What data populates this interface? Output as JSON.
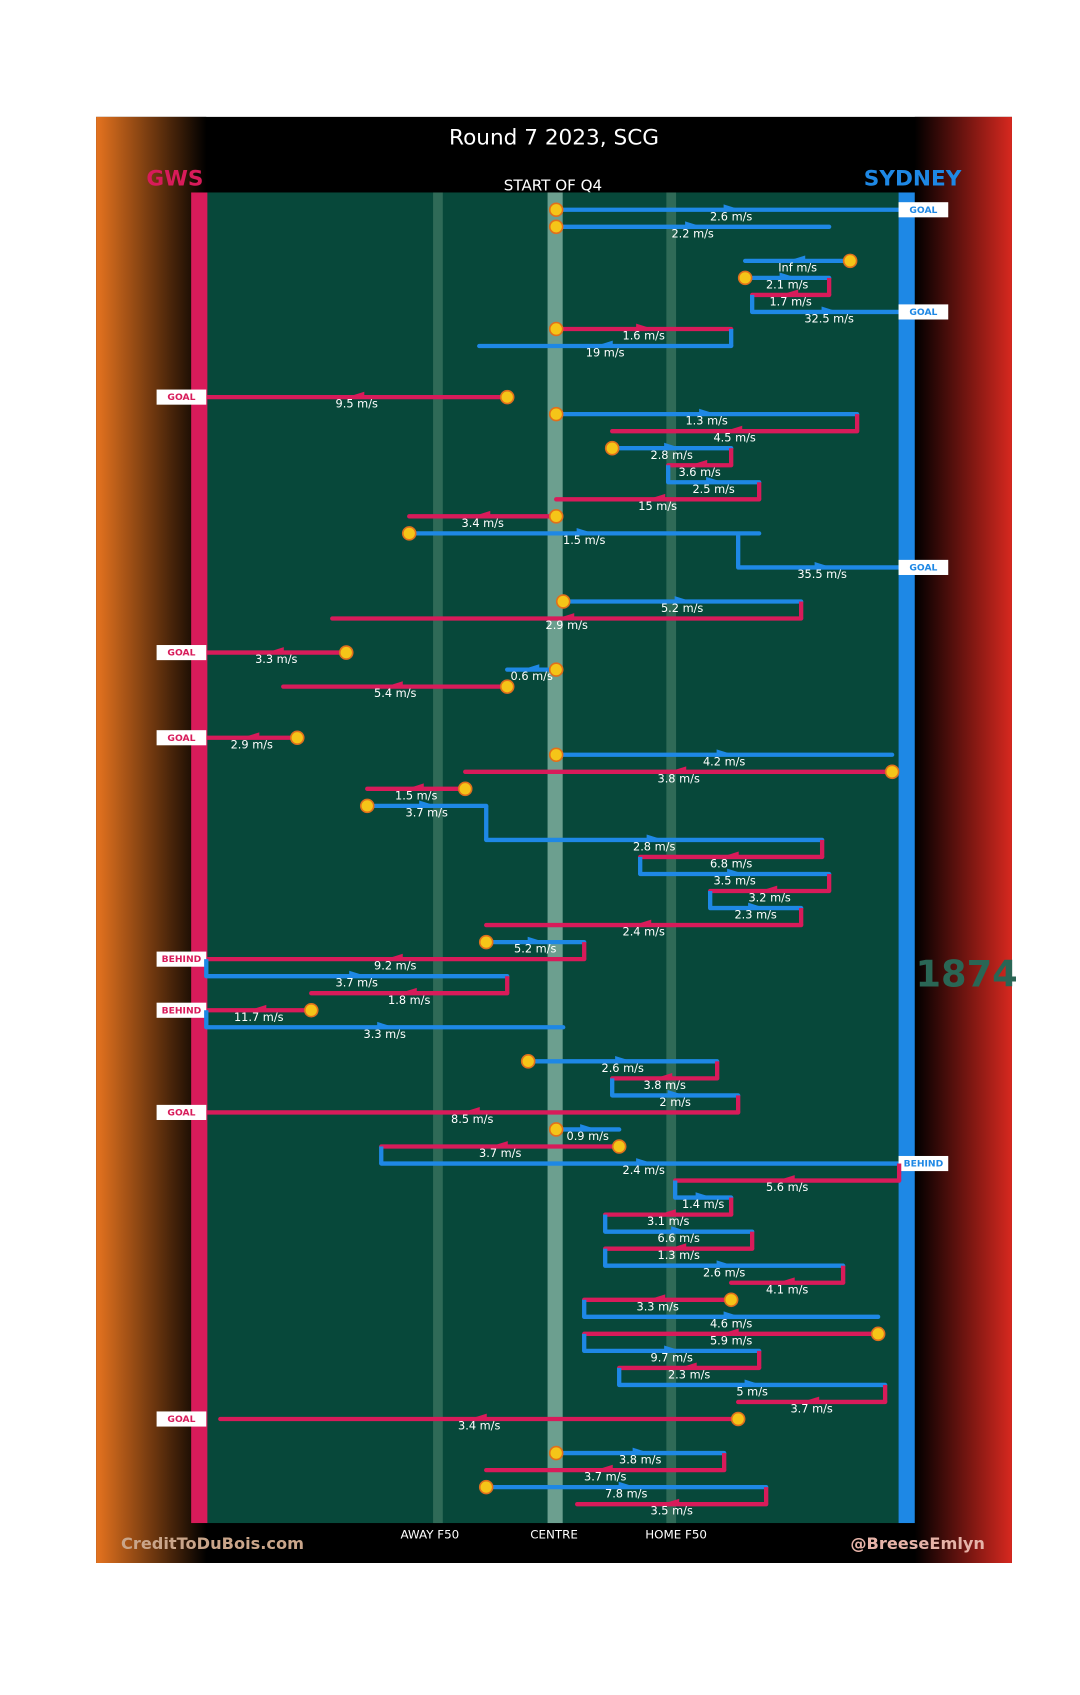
{
  "title": "Round 7 2023, SCG",
  "subtitle": "START OF Q4",
  "teams": {
    "GWS": {
      "name": "GWS",
      "color": "#d81b5a"
    },
    "SYDNEY": {
      "name": "SYDNEY",
      "color": "#1e88e5"
    }
  },
  "field_labels": {
    "away": "AWAY F50",
    "centre": "CENTRE",
    "home": "HOME F50"
  },
  "credit_left": "CreditToDuBois.com",
  "credit_right": "@BreeseEmlyn",
  "watermark": "1874",
  "rows": [
    {
      "team": "SYDNEY",
      "from": 50,
      "to": 100,
      "label": "2.6 m/s",
      "start": true,
      "result": "GOAL"
    },
    {
      "team": "SYDNEY",
      "from": 50,
      "to": 89,
      "label": "2.2 m/s",
      "start": true
    },
    {
      "team": "SYDNEY",
      "from": 92,
      "to": 77,
      "label": "Inf m/s",
      "start": true
    },
    {
      "team": "SYDNEY",
      "from": 77,
      "to": 89,
      "label": "2.1 m/s",
      "start": true
    },
    {
      "team": "GWS",
      "from": 89,
      "to": 78,
      "label": "1.7 m/s"
    },
    {
      "team": "SYDNEY",
      "from": 78,
      "to": 100,
      "label": "32.5 m/s",
      "result": "GOAL"
    },
    {
      "team": "GWS",
      "from": 50,
      "to": 75,
      "label": "1.6 m/s",
      "start": true
    },
    {
      "team": "SYDNEY",
      "from": 75,
      "to": 39,
      "label": "19 m/s"
    },
    {
      "team": "GWS",
      "from": 43,
      "to": 0,
      "label": "9.5 m/s",
      "start": true,
      "result": "GOAL"
    },
    {
      "team": "SYDNEY",
      "from": 50,
      "to": 93,
      "label": "1.3 m/s",
      "start": true
    },
    {
      "team": "GWS",
      "from": 93,
      "to": 58,
      "label": "4.5 m/s"
    },
    {
      "team": "SYDNEY",
      "from": 58,
      "to": 75,
      "label": "2.8 m/s",
      "start": true
    },
    {
      "team": "GWS",
      "from": 75,
      "to": 66,
      "label": "3.6 m/s"
    },
    {
      "team": "SYDNEY",
      "from": 66,
      "to": 79,
      "label": "2.5 m/s"
    },
    {
      "team": "GWS",
      "from": 79,
      "to": 50,
      "label": "15 m/s"
    },
    {
      "team": "GWS",
      "from": 50,
      "to": 29,
      "label": "3.4 m/s",
      "start": true
    },
    {
      "team": "SYDNEY",
      "from": 29,
      "to": 79,
      "label": "1.5 m/s",
      "start": true
    },
    {
      "team": "SYDNEY",
      "from": 76,
      "to": 100,
      "label": "35.5 m/s",
      "result": "GOAL"
    },
    {
      "team": "SYDNEY",
      "from": 51,
      "to": 85,
      "label": "5.2 m/s",
      "start": true
    },
    {
      "team": "GWS",
      "from": 85,
      "to": 18,
      "label": "2.9 m/s"
    },
    {
      "team": "GWS",
      "from": 20,
      "to": 0,
      "label": "3.3 m/s",
      "start": true,
      "result": "GOAL"
    },
    {
      "team": "SYDNEY",
      "from": 50,
      "to": 43,
      "label": "0.6 m/s",
      "start": true
    },
    {
      "team": "GWS",
      "from": 43,
      "to": 11,
      "label": "5.4 m/s",
      "start": true
    },
    {
      "team": "GWS",
      "from": 13,
      "to": 0,
      "label": "2.9 m/s",
      "start": true,
      "result": "GOAL"
    },
    {
      "team": "SYDNEY",
      "from": 50,
      "to": 98,
      "label": "4.2 m/s",
      "start": true
    },
    {
      "team": "GWS",
      "from": 98,
      "to": 37,
      "label": "3.8 m/s",
      "start": true
    },
    {
      "team": "GWS",
      "from": 37,
      "to": 23,
      "label": "1.5 m/s",
      "start": true
    },
    {
      "team": "SYDNEY",
      "from": 23,
      "to": 40,
      "label": "3.7 m/s",
      "start": true
    },
    {
      "team": "SYDNEY",
      "from": 40,
      "to": 88,
      "label": "2.8 m/s"
    },
    {
      "team": "GWS",
      "from": 88,
      "to": 62,
      "label": "6.8 m/s"
    },
    {
      "team": "SYDNEY",
      "from": 62,
      "to": 89,
      "label": "3.5 m/s"
    },
    {
      "team": "GWS",
      "from": 89,
      "to": 72,
      "label": "3.2 m/s"
    },
    {
      "team": "SYDNEY",
      "from": 72,
      "to": 85,
      "label": "2.3 m/s"
    },
    {
      "team": "GWS",
      "from": 85,
      "to": 40,
      "label": "2.4 m/s"
    },
    {
      "team": "SYDNEY",
      "from": 40,
      "to": 54,
      "label": "5.2 m/s",
      "start": true
    },
    {
      "team": "GWS",
      "from": 54,
      "to": 0,
      "label": "9.2 m/s",
      "result": "BEHIND"
    },
    {
      "team": "SYDNEY",
      "from": 0,
      "to": 43,
      "label": "3.7 m/s"
    },
    {
      "team": "GWS",
      "from": 43,
      "to": 15,
      "label": "1.8 m/s"
    },
    {
      "team": "GWS",
      "from": 15,
      "to": 0,
      "label": "11.7 m/s",
      "start": true,
      "result": "BEHIND"
    },
    {
      "team": "SYDNEY",
      "from": 0,
      "to": 51,
      "label": "3.3 m/s"
    },
    {
      "team": "SYDNEY",
      "from": 46,
      "to": 73,
      "label": "2.6 m/s",
      "start": true
    },
    {
      "team": "GWS",
      "from": 73,
      "to": 58,
      "label": "3.8 m/s"
    },
    {
      "team": "SYDNEY",
      "from": 58,
      "to": 76,
      "label": "2 m/s"
    },
    {
      "team": "GWS",
      "from": 76,
      "to": 0,
      "label": "8.5 m/s",
      "result": "GOAL"
    },
    {
      "team": "SYDNEY",
      "from": 50,
      "to": 59,
      "label": "0.9 m/s",
      "start": true
    },
    {
      "team": "GWS",
      "from": 59,
      "to": 25,
      "label": "3.7 m/s",
      "start": true
    },
    {
      "team": "SYDNEY",
      "from": 25,
      "to": 100,
      "label": "2.4 m/s",
      "result": "BEHIND"
    },
    {
      "team": "GWS",
      "from": 99,
      "to": 67,
      "label": "5.6 m/s"
    },
    {
      "team": "SYDNEY",
      "from": 67,
      "to": 75,
      "label": "1.4 m/s"
    },
    {
      "team": "GWS",
      "from": 75,
      "to": 57,
      "label": "3.1 m/s"
    },
    {
      "team": "SYDNEY",
      "from": 57,
      "to": 78,
      "label": "6.6 m/s"
    },
    {
      "team": "GWS",
      "from": 78,
      "to": 57,
      "label": "1.3 m/s"
    },
    {
      "team": "SYDNEY",
      "from": 57,
      "to": 91,
      "label": "2.6 m/s"
    },
    {
      "team": "GWS",
      "from": 91,
      "to": 75,
      "label": "4.1 m/s"
    },
    {
      "team": "GWS",
      "from": 75,
      "to": 54,
      "label": "3.3 m/s",
      "start": true
    },
    {
      "team": "SYDNEY",
      "from": 54,
      "to": 96,
      "label": "4.6 m/s"
    },
    {
      "team": "GWS",
      "from": 96,
      "to": 54,
      "label": "5.9 m/s",
      "start": true
    },
    {
      "team": "SYDNEY",
      "from": 54,
      "to": 79,
      "label": "9.7 m/s"
    },
    {
      "team": "GWS",
      "from": 79,
      "to": 59,
      "label": "2.3 m/s"
    },
    {
      "team": "SYDNEY",
      "from": 59,
      "to": 97,
      "label": "5 m/s"
    },
    {
      "team": "GWS",
      "from": 97,
      "to": 76,
      "label": "3.7 m/s"
    },
    {
      "team": "GWS",
      "from": 76,
      "to": 2,
      "label": "3.4 m/s",
      "start": true,
      "result": "GOAL"
    },
    {
      "team": "SYDNEY",
      "from": 50,
      "to": 74,
      "label": "3.8 m/s",
      "start": true
    },
    {
      "team": "GWS",
      "from": 74,
      "to": 40,
      "label": "3.7 m/s"
    },
    {
      "team": "SYDNEY",
      "from": 40,
      "to": 80,
      "label": "7.8 m/s",
      "start": true
    },
    {
      "team": "GWS",
      "from": 80,
      "to": 53,
      "label": "3.5 m/s"
    }
  ]
}
